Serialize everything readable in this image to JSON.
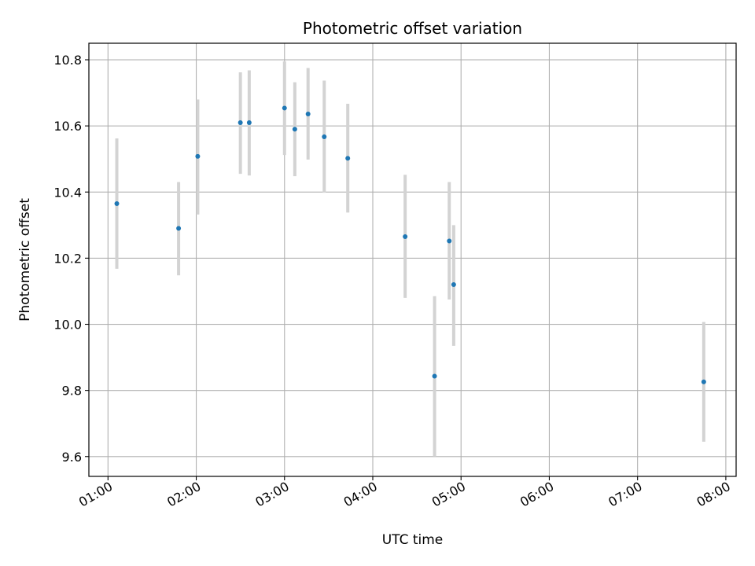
{
  "chart_data": {
    "type": "scatter",
    "title": "Photometric offset variation",
    "xlabel": "UTC time",
    "ylabel": "Photometric offset",
    "x_ticks": [
      "01:00",
      "02:00",
      "03:00",
      "04:00",
      "05:00",
      "06:00",
      "07:00",
      "08:00"
    ],
    "y_ticks": [
      "9.6",
      "9.8",
      "10.0",
      "10.2",
      "10.4",
      "10.6",
      "10.8"
    ],
    "xlim": [
      "00:47",
      "08:07"
    ],
    "ylim": [
      9.54,
      10.85
    ],
    "grid": true,
    "marker_color": "#1f77b4",
    "errorbar_color": "#d3d3d3",
    "points": [
      {
        "x": "01:06",
        "y": 10.365,
        "low": 10.168,
        "high": 10.562
      },
      {
        "x": "01:48",
        "y": 10.29,
        "low": 10.148,
        "high": 10.43
      },
      {
        "x": "02:01",
        "y": 10.508,
        "low": 10.332,
        "high": 10.68
      },
      {
        "x": "02:30",
        "y": 10.61,
        "low": 10.455,
        "high": 10.762
      },
      {
        "x": "02:36",
        "y": 10.61,
        "low": 10.45,
        "high": 10.768
      },
      {
        "x": "03:00",
        "y": 10.654,
        "low": 10.512,
        "high": 10.795
      },
      {
        "x": "03:07",
        "y": 10.59,
        "low": 10.448,
        "high": 10.732
      },
      {
        "x": "03:16",
        "y": 10.636,
        "low": 10.498,
        "high": 10.775
      },
      {
        "x": "03:27",
        "y": 10.567,
        "low": 10.398,
        "high": 10.737
      },
      {
        "x": "03:43",
        "y": 10.502,
        "low": 10.338,
        "high": 10.667
      },
      {
        "x": "04:22",
        "y": 10.265,
        "low": 10.08,
        "high": 10.452
      },
      {
        "x": "04:42",
        "y": 9.843,
        "low": 9.6,
        "high": 10.085
      },
      {
        "x": "04:52",
        "y": 10.252,
        "low": 10.075,
        "high": 10.43
      },
      {
        "x": "04:55",
        "y": 10.12,
        "low": 9.935,
        "high": 10.3
      },
      {
        "x": "07:45",
        "y": 9.826,
        "low": 9.645,
        "high": 10.007
      }
    ]
  }
}
